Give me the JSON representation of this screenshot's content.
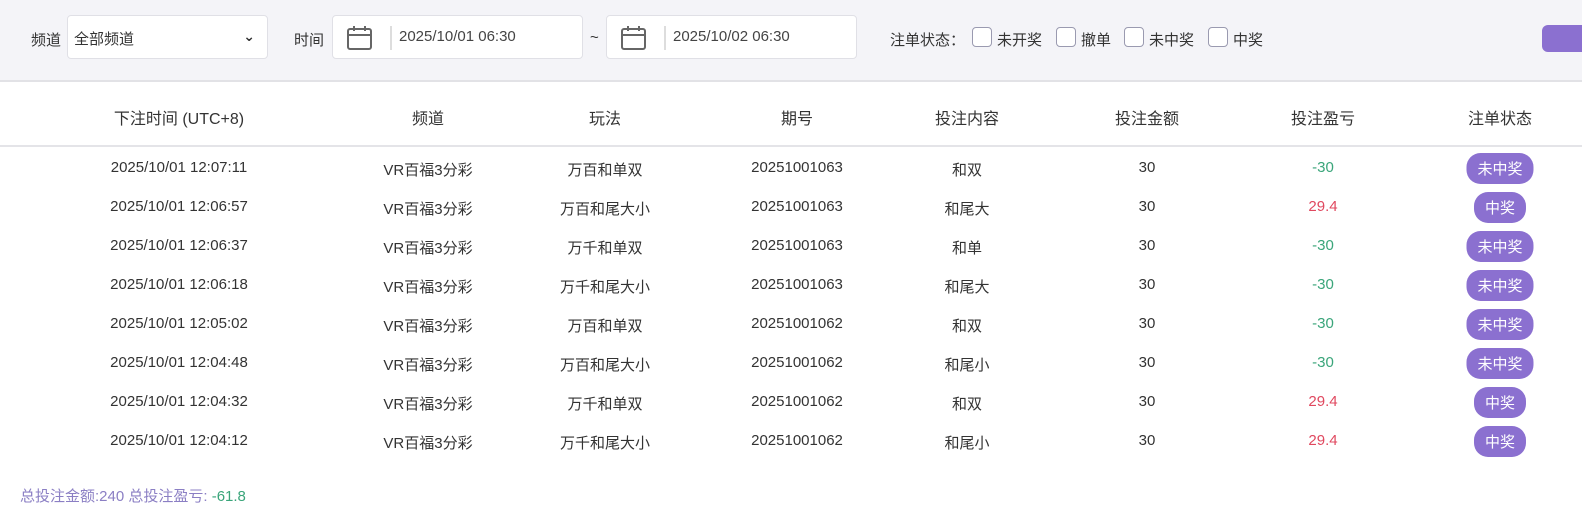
{
  "filter": {
    "channel_label": "频道",
    "channel_value": "全部频道",
    "time_label": "时间",
    "start": "2025/10/01 06:30",
    "tilde": "~",
    "end": "2025/10/02 06:30",
    "status_label": "注单状态：",
    "statuses": [
      "未开奖",
      "撤单",
      "未中奖",
      "中奖"
    ]
  },
  "table": {
    "headers": [
      "下注时间 (UTC+8)",
      "频道",
      "玩法",
      "期号",
      "投注内容",
      "投注金额",
      "投注盈亏",
      "注单状态"
    ],
    "rows": [
      [
        "2025/10/01 12:07:11",
        "VR百福3分彩",
        "万百和单双",
        "20251001063",
        "和双",
        "30",
        "-30",
        "未中奖"
      ],
      [
        "2025/10/01 12:06:57",
        "VR百福3分彩",
        "万百和尾大小",
        "20251001063",
        "和尾大",
        "30",
        "29.4",
        "中奖"
      ],
      [
        "2025/10/01 12:06:37",
        "VR百福3分彩",
        "万千和单双",
        "20251001063",
        "和单",
        "30",
        "-30",
        "未中奖"
      ],
      [
        "2025/10/01 12:06:18",
        "VR百福3分彩",
        "万千和尾大小",
        "20251001063",
        "和尾大",
        "30",
        "-30",
        "未中奖"
      ],
      [
        "2025/10/01 12:05:02",
        "VR百福3分彩",
        "万百和单双",
        "20251001062",
        "和双",
        "30",
        "-30",
        "未中奖"
      ],
      [
        "2025/10/01 12:04:48",
        "VR百福3分彩",
        "万百和尾大小",
        "20251001062",
        "和尾小",
        "30",
        "-30",
        "未中奖"
      ],
      [
        "2025/10/01 12:04:32",
        "VR百福3分彩",
        "万千和单双",
        "20251001062",
        "和双",
        "30",
        "29.4",
        "中奖"
      ],
      [
        "2025/10/01 12:04:12",
        "VR百福3分彩",
        "万千和尾大小",
        "20251001062",
        "和尾小",
        "30",
        "29.4",
        "中奖"
      ]
    ]
  },
  "summary": {
    "label": "总投注金额:240 总投注盈亏: ",
    "profit": "-61.8"
  },
  "colors": {
    "accent": "#8b70d0",
    "loss": "#3aa57a",
    "win": "#e0485f"
  }
}
